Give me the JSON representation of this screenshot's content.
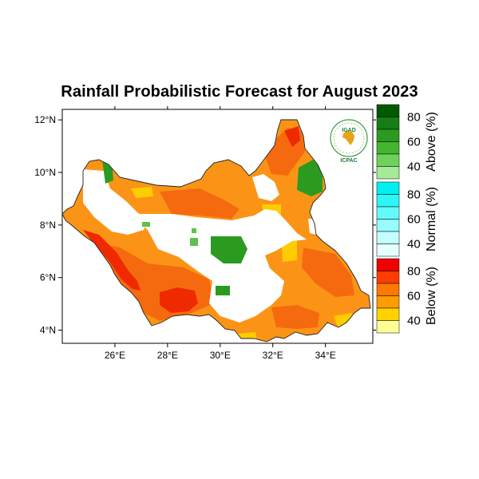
{
  "title": "Rainfall Probabilistic Forecast for August 2023",
  "logo": {
    "top": "IGAD",
    "bottom": "ICPAC"
  },
  "map": {
    "lon_range": [
      24,
      35.8
    ],
    "lat_range": [
      3.5,
      12.4
    ],
    "x_ticks": [
      {
        "value": 26,
        "label": "26°E"
      },
      {
        "value": 28,
        "label": "28°E"
      },
      {
        "value": 30,
        "label": "30°E"
      },
      {
        "value": 32,
        "label": "32°E"
      },
      {
        "value": 34,
        "label": "34°E"
      }
    ],
    "y_ticks": [
      {
        "value": 12,
        "label": "12°N"
      },
      {
        "value": 10,
        "label": "10°N"
      },
      {
        "value": 8,
        "label": "8°N"
      },
      {
        "value": 6,
        "label": "6°N"
      },
      {
        "value": 4,
        "label": "4°N"
      }
    ]
  },
  "colorbar": {
    "groups": [
      {
        "category": "Above (%)",
        "colors": [
          "#005a00",
          "#167d16",
          "#2a9b20",
          "#43b52e",
          "#6dd25a",
          "#a4eb98"
        ],
        "ticks": [
          "80",
          "60",
          "40"
        ]
      },
      {
        "category": "Normal (%)",
        "colors": [
          "#00f0f0",
          "#2ef6f6",
          "#64fafa",
          "#96fcfc",
          "#c4fefe",
          "#e6ffff"
        ],
        "ticks": [
          "80",
          "60",
          "40"
        ]
      },
      {
        "category": "Below (%)",
        "colors": [
          "#f00000",
          "#ff3c00",
          "#ff7800",
          "#ff9c00",
          "#ffd200",
          "#ffff96"
        ],
        "ticks": [
          "80",
          "60",
          "40"
        ]
      }
    ]
  },
  "colors": {
    "below_high": "#f02a00",
    "below_mid": "#f56a0e",
    "below_low": "#fb9416",
    "below_weak": "#ffcc00",
    "above_mid": "#2a9b20",
    "above_low": "#5ec24a"
  }
}
